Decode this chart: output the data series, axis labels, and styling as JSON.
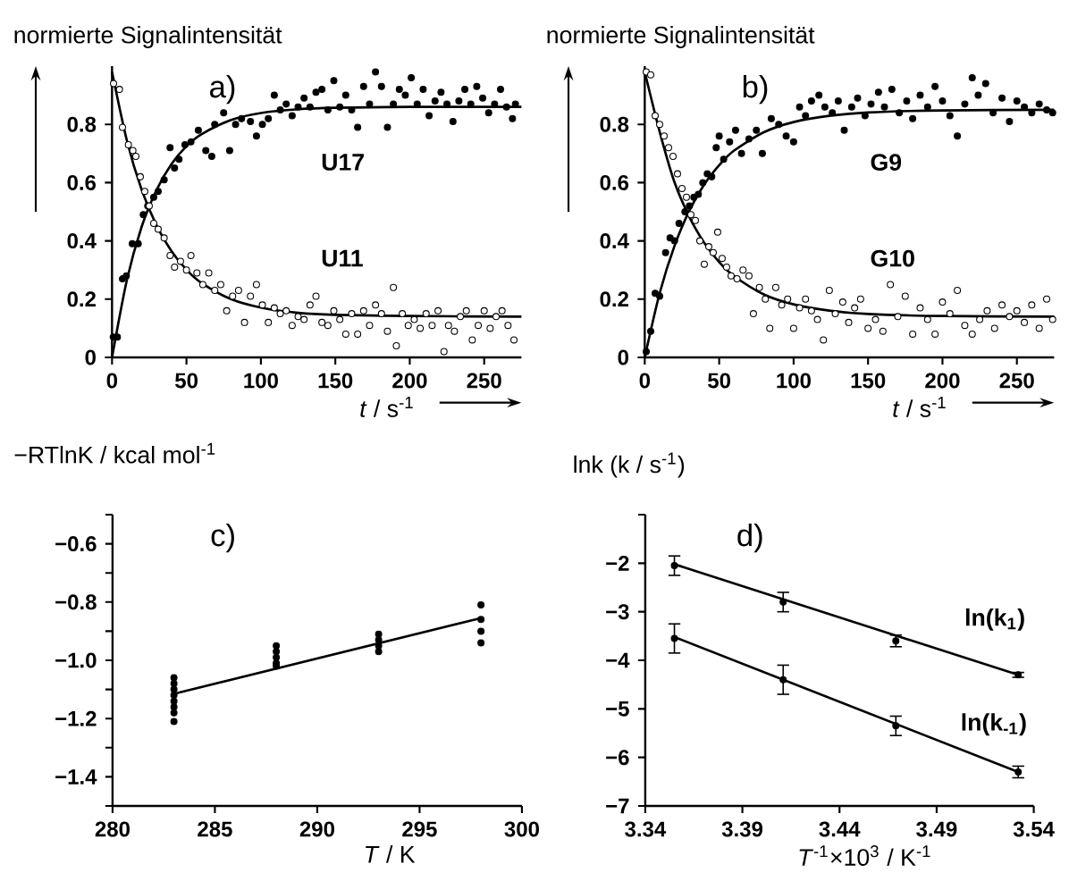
{
  "chart_data": [
    {
      "type": "scatter",
      "xlabel": "*t* / s$^{-1}$",
      "ylabel": "normierte Signalintensität",
      "annotations": [
        "a)"
      ],
      "xlim": [
        0,
        275
      ],
      "ylim": [
        0,
        1.0
      ],
      "xticks": [
        0,
        50,
        100,
        150,
        200,
        250
      ],
      "yticks": [
        0,
        0.2,
        0.4,
        0.6,
        0.8
      ],
      "series": [
        {
          "name": "U17",
          "color": "#000000",
          "marker": "circle",
          "x": [
            0.8,
            3.6,
            7,
            9.6,
            13.6,
            17.6,
            21,
            24,
            28,
            31,
            35,
            39,
            42,
            45,
            49,
            53,
            58,
            63,
            67,
            69,
            75,
            79,
            83,
            87,
            93,
            97,
            101,
            105,
            109,
            113,
            117,
            121,
            125,
            129,
            133,
            137,
            141,
            145,
            149,
            153,
            157,
            161,
            165,
            169,
            173,
            177,
            181,
            185,
            189,
            193,
            197,
            201,
            205,
            209,
            213,
            217,
            221,
            225,
            229,
            233,
            237,
            241,
            245,
            249,
            253,
            257,
            261,
            265,
            269,
            271
          ],
          "values": [
            0.07,
            0.07,
            0.27,
            0.28,
            0.39,
            0.39,
            0.49,
            0.52,
            0.55,
            0.57,
            0.61,
            0.72,
            0.65,
            0.68,
            0.73,
            0.74,
            0.78,
            0.71,
            0.69,
            0.8,
            0.84,
            0.71,
            0.8,
            0.82,
            0.81,
            0.76,
            0.8,
            0.82,
            0.9,
            0.85,
            0.87,
            0.83,
            0.86,
            0.89,
            0.86,
            0.91,
            0.92,
            0.85,
            0.95,
            0.86,
            0.9,
            0.85,
            0.79,
            0.93,
            0.87,
            0.98,
            0.93,
            0.79,
            0.87,
            0.92,
            0.9,
            0.96,
            0.87,
            0.92,
            0.83,
            0.88,
            0.91,
            0.87,
            0.81,
            0.88,
            0.92,
            0.87,
            0.93,
            0.89,
            0.84,
            0.87,
            0.92,
            0.86,
            0.82,
            0.87
          ]
        },
        {
          "name": "U11",
          "color": "#000000",
          "marker": "circle",
          "x": [
            1,
            5,
            7,
            11,
            14,
            16,
            19,
            22,
            25,
            28,
            31,
            35,
            39,
            42,
            46,
            50,
            53,
            57,
            61,
            65,
            69,
            73,
            77,
            81,
            85,
            89,
            93,
            97,
            101,
            105,
            109,
            113,
            117,
            121,
            125,
            129,
            133,
            137,
            141,
            145,
            149,
            153,
            157,
            161,
            165,
            169,
            173,
            177,
            181,
            185,
            189,
            191,
            195,
            199,
            203,
            207,
            211,
            215,
            219,
            223,
            226,
            230,
            234,
            238,
            242,
            246,
            250,
            254,
            258,
            262,
            266,
            270
          ],
          "values": [
            0.94,
            0.92,
            0.79,
            0.73,
            0.71,
            0.69,
            0.62,
            0.57,
            0.52,
            0.46,
            0.44,
            0.41,
            0.35,
            0.31,
            0.33,
            0.3,
            0.35,
            0.29,
            0.25,
            0.29,
            0.23,
            0.25,
            0.16,
            0.21,
            0.23,
            0.12,
            0.21,
            0.25,
            0.18,
            0.12,
            0.17,
            0.15,
            0.16,
            0.11,
            0.14,
            0.13,
            0.18,
            0.21,
            0.12,
            0.11,
            0.16,
            0.13,
            0.08,
            0.15,
            0.08,
            0.16,
            0.11,
            0.18,
            0.15,
            0.09,
            0.24,
            0.04,
            0.15,
            0.11,
            0.13,
            0.1,
            0.15,
            0.11,
            0.16,
            0.02,
            0.11,
            0.09,
            0.14,
            0.16,
            0.06,
            0.11,
            0.16,
            0.1,
            0.14,
            0.16,
            0.11,
            0.06
          ]
        },
        {
          "type": "line",
          "color": "#000000",
          "marker": "none",
          "x": [
            0,
            10,
            20,
            30,
            40,
            50,
            60,
            80,
            100,
            125,
            150,
            200,
            275
          ],
          "values": [
            0,
            0.266,
            0.45,
            0.576,
            0.664,
            0.725,
            0.766,
            0.815,
            0.839,
            0.852,
            0.857,
            0.86,
            0.86
          ]
        },
        {
          "type": "line",
          "color": "#000000",
          "marker": "none",
          "x": [
            0,
            10,
            20,
            30,
            40,
            50,
            60,
            80,
            100,
            125,
            150,
            200,
            275
          ],
          "values": [
            0.98,
            0.744,
            0.574,
            0.452,
            0.364,
            0.301,
            0.256,
            0.2,
            0.171,
            0.153,
            0.146,
            0.142,
            0.14
          ]
        }
      ]
    },
    {
      "type": "scatter",
      "xlabel": "*t* / s$^{-1}$",
      "ylabel": "normierte Signalintensität",
      "annotations": [
        "b)"
      ],
      "xlim": [
        0,
        275
      ],
      "ylim": [
        0,
        1.0
      ],
      "xticks": [
        0,
        50,
        100,
        150,
        200,
        250
      ],
      "yticks": [
        0,
        0.2,
        0.4,
        0.6,
        0.8
      ],
      "series": [
        {
          "name": "G9",
          "color": "#000000",
          "marker": "circle",
          "x": [
            1,
            4,
            7,
            10,
            14,
            17,
            20,
            23,
            27,
            30,
            33,
            36,
            39,
            42,
            45,
            48,
            50,
            53,
            57,
            61,
            65,
            70,
            75,
            79,
            85,
            90,
            95,
            100,
            104,
            108,
            112,
            117,
            121,
            126,
            130,
            134,
            139,
            143,
            148,
            152,
            157,
            161,
            166,
            171,
            176,
            180,
            185,
            190,
            195,
            200,
            205,
            210,
            215,
            220,
            224,
            229,
            234,
            240,
            245,
            250,
            255,
            260,
            265,
            270,
            274
          ],
          "values": [
            0.02,
            0.09,
            0.22,
            0.21,
            0.36,
            0.41,
            0.4,
            0.46,
            0.5,
            0.52,
            0.55,
            0.56,
            0.6,
            0.63,
            0.62,
            0.72,
            0.76,
            0.68,
            0.74,
            0.78,
            0.7,
            0.75,
            0.78,
            0.7,
            0.82,
            0.8,
            0.76,
            0.74,
            0.86,
            0.83,
            0.88,
            0.9,
            0.86,
            0.84,
            0.88,
            0.78,
            0.86,
            0.89,
            0.83,
            0.87,
            0.91,
            0.86,
            0.92,
            0.84,
            0.88,
            0.82,
            0.9,
            0.86,
            0.93,
            0.88,
            0.83,
            0.76,
            0.87,
            0.96,
            0.9,
            0.94,
            0.84,
            0.89,
            0.81,
            0.88,
            0.86,
            0.84,
            0.87,
            0.85,
            0.84
          ]
        },
        {
          "name": "G10",
          "color": "#000000",
          "marker": "circle",
          "x": [
            1,
            4,
            7,
            10,
            13,
            16,
            19,
            22,
            25,
            28,
            31,
            34,
            37,
            40,
            43,
            46,
            49,
            52,
            55,
            58,
            62,
            66,
            70,
            73,
            77,
            81,
            84,
            88,
            92,
            96,
            100,
            104,
            108,
            112,
            116,
            120,
            124,
            128,
            133,
            137,
            141,
            145,
            150,
            155,
            160,
            165,
            170,
            175,
            180,
            185,
            190,
            195,
            200,
            205,
            210,
            215,
            220,
            225,
            230,
            235,
            240,
            245,
            250,
            255,
            260,
            265,
            270,
            274
          ],
          "values": [
            0.98,
            0.97,
            0.83,
            0.8,
            0.76,
            0.72,
            0.69,
            0.63,
            0.58,
            0.55,
            0.49,
            0.47,
            0.4,
            0.32,
            0.38,
            0.36,
            0.43,
            0.34,
            0.31,
            0.28,
            0.27,
            0.3,
            0.28,
            0.15,
            0.24,
            0.2,
            0.1,
            0.24,
            0.18,
            0.2,
            0.1,
            0.17,
            0.2,
            0.16,
            0.13,
            0.06,
            0.23,
            0.15,
            0.19,
            0.12,
            0.17,
            0.2,
            0.1,
            0.13,
            0.09,
            0.25,
            0.14,
            0.21,
            0.08,
            0.17,
            0.13,
            0.08,
            0.19,
            0.15,
            0.23,
            0.11,
            0.08,
            0.13,
            0.16,
            0.1,
            0.18,
            0.14,
            0.16,
            0.12,
            0.18,
            0.1,
            0.2,
            0.13
          ]
        },
        {
          "type": "line",
          "color": "#000000",
          "marker": "none",
          "x": [
            0,
            10,
            20,
            30,
            40,
            50,
            60,
            80,
            100,
            125,
            150,
            200,
            275
          ],
          "values": [
            0,
            0.22,
            0.383,
            0.504,
            0.594,
            0.66,
            0.71,
            0.773,
            0.808,
            0.83,
            0.841,
            0.848,
            0.85
          ]
        },
        {
          "type": "line",
          "color": "#000000",
          "marker": "none",
          "x": [
            0,
            10,
            20,
            30,
            40,
            50,
            60,
            80,
            100,
            125,
            150,
            200,
            275
          ],
          "values": [
            0.98,
            0.775,
            0.601,
            0.482,
            0.393,
            0.327,
            0.279,
            0.216,
            0.182,
            0.16,
            0.149,
            0.142,
            0.14
          ]
        }
      ]
    },
    {
      "type": "scatter",
      "xlabel": "*T* / K",
      "ylabel": "−RTlnK / kcal mol$^{-1}$",
      "annotations": [
        "c)"
      ],
      "xlim": [
        280,
        300
      ],
      "ylim": [
        -1.5,
        -0.5
      ],
      "xticks": [
        280,
        285,
        290,
        295,
        300
      ],
      "yticks": [
        {
          "value": -1.5,
          "label": null
        },
        {
          "value": -1.4,
          "label": "−1.4"
        },
        {
          "value": -1.3,
          "label": null
        },
        {
          "value": -1.2,
          "label": "−1.2"
        },
        {
          "value": -1.1,
          "label": null
        },
        {
          "value": -1.0,
          "label": "−1.0"
        },
        {
          "value": -0.9,
          "label": null
        },
        {
          "value": -0.8,
          "label": "−0.8"
        },
        {
          "value": -0.7,
          "label": null
        },
        {
          "value": -0.6,
          "label": "−0.6"
        },
        {
          "value": -0.5,
          "label": null
        }
      ],
      "series": [
        {
          "color": "#000000",
          "marker": "circle",
          "x": [
            283,
            283,
            283,
            283,
            283,
            283,
            283,
            283,
            288,
            288,
            288,
            288,
            288,
            293,
            293,
            293,
            293,
            298,
            298,
            298,
            298
          ],
          "values": [
            -1.06,
            -1.08,
            -1.1,
            -1.12,
            -1.14,
            -1.16,
            -1.18,
            -1.21,
            -0.95,
            -0.97,
            -0.99,
            -1.01,
            -1.02,
            -0.91,
            -0.93,
            -0.95,
            -0.97,
            -0.81,
            -0.86,
            -0.9,
            -0.94
          ]
        },
        {
          "type": "line",
          "color": "#000000",
          "marker": "none",
          "x": [
            283,
            298
          ],
          "values": [
            -1.115,
            -0.855
          ]
        }
      ]
    },
    {
      "type": "scatter",
      "xlabel": "*T*$^{-1}$×10$^{3}$ / K$^{-1}$",
      "ylabel": "lnk (k / s$^{-1}$)",
      "annotations": [
        "d)"
      ],
      "xlim": [
        3.34,
        3.54
      ],
      "ylim": [
        -7,
        -1
      ],
      "xticks": [
        3.34,
        3.39,
        3.44,
        3.49,
        3.54
      ],
      "yticks": [
        {
          "value": -7,
          "label": "−7"
        },
        {
          "value": -6,
          "label": "−6"
        },
        {
          "value": -5,
          "label": "−5"
        },
        {
          "value": -4,
          "label": "−4"
        },
        {
          "value": -3,
          "label": "−3"
        },
        {
          "value": -2,
          "label": "−2"
        },
        {
          "value": -1,
          "label": null
        }
      ],
      "series": [
        {
          "name": "ln(**k**$_{1}$)",
          "color": "#000000",
          "marker": "circle",
          "x": [
            3.355,
            3.411,
            3.469,
            3.532
          ],
          "values": [
            -2.05,
            -2.8,
            -3.6,
            -4.3
          ],
          "errors": [
            0.2,
            0.2,
            0.12,
            0.05
          ]
        },
        {
          "name": "ln(**k**$_{-1}$)",
          "color": "#000000",
          "marker": "circle",
          "x": [
            3.355,
            3.411,
            3.469,
            3.532
          ],
          "values": [
            -3.55,
            -4.4,
            -5.35,
            -6.3
          ],
          "errors": [
            0.3,
            0.3,
            0.2,
            0.12
          ]
        },
        {
          "type": "line",
          "color": "#000000",
          "marker": "none",
          "x": [
            3.355,
            3.532
          ],
          "values": [
            -2.02,
            -4.3
          ]
        },
        {
          "type": "line",
          "color": "#000000",
          "marker": "none",
          "x": [
            3.355,
            3.532
          ],
          "values": [
            -3.52,
            -6.3
          ]
        }
      ]
    }
  ]
}
